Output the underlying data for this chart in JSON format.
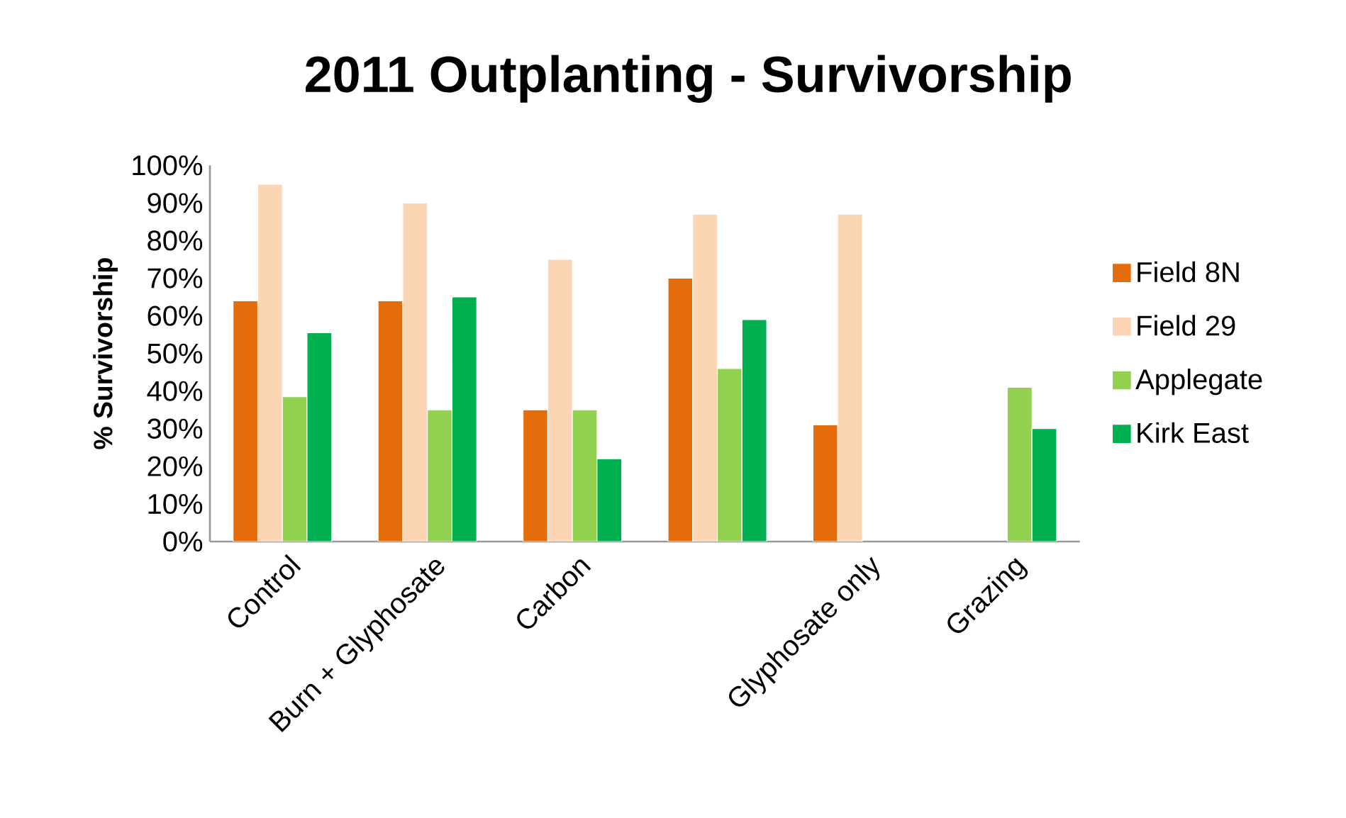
{
  "chart_data": {
    "type": "bar",
    "title": "2011 Outplanting - Survivorship",
    "ylabel": "% Survivorship",
    "categories": [
      "Control",
      "Burn + Glyphosate",
      "Carbon",
      null,
      "Glyphosate only",
      "Grazing"
    ],
    "series": [
      {
        "name": "Field 8N",
        "color": "#e46c0a",
        "values": [
          64,
          64,
          35,
          70,
          31,
          null
        ]
      },
      {
        "name": "Field 29",
        "color": "#fcd5b5",
        "values": [
          95,
          90,
          75,
          87,
          87,
          null
        ]
      },
      {
        "name": "Applegate",
        "color": "#92d050",
        "values": [
          38.5,
          35,
          35,
          46,
          null,
          41
        ]
      },
      {
        "name": "Kirk East",
        "color": "#00b050",
        "values": [
          55.5,
          65,
          22,
          59,
          null,
          30
        ]
      }
    ],
    "ylim": [
      0,
      100
    ],
    "yticks": [
      {
        "value": 0,
        "label": "0%"
      },
      {
        "value": 10,
        "label": "10%"
      },
      {
        "value": 20,
        "label": "20%"
      },
      {
        "value": 30,
        "label": "30%"
      },
      {
        "value": 40,
        "label": "40%"
      },
      {
        "value": 50,
        "label": "50%"
      },
      {
        "value": 60,
        "label": "60%"
      },
      {
        "value": 70,
        "label": "70%"
      },
      {
        "value": 80,
        "label": "80%"
      },
      {
        "value": 90,
        "label": "90%"
      },
      {
        "value": 100,
        "label": "100%"
      }
    ],
    "grid": false,
    "legend": "right"
  }
}
